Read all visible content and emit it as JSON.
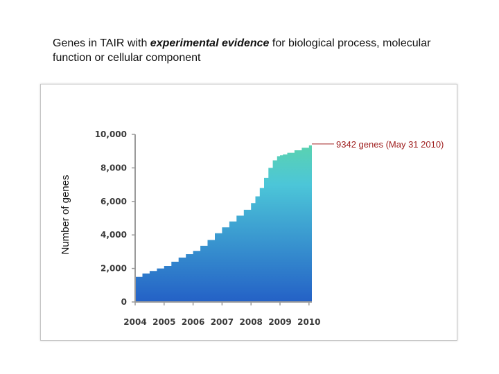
{
  "slide": {
    "title_pre": "Genes in TAIR with ",
    "title_emph": "experimental evidence",
    "title_post": " for biological process, molecular function or cellular component"
  },
  "annotation": {
    "text": "9342 genes  (May 31 2010)"
  },
  "chart_data": {
    "type": "area",
    "title": "",
    "xlabel": "",
    "ylabel": "Number of genes",
    "x_ticks": [
      "2004",
      "2005",
      "2006",
      "2007",
      "2008",
      "2009",
      "2010"
    ],
    "y_ticks": [
      "0",
      "2,000",
      "4,000",
      "6,000",
      "8,000",
      "10,000"
    ],
    "xlim": [
      2004.0,
      2010.1
    ],
    "ylim": [
      0,
      10000
    ],
    "grid": false,
    "legend": "none",
    "series": [
      {
        "x": [
          2004.0,
          2004.0,
          2004.25,
          2004.5,
          2004.75,
          2005.0,
          2005.25,
          2005.5,
          2005.75,
          2006.0,
          2006.25,
          2006.5,
          2006.75,
          2007.0,
          2007.25,
          2007.5,
          2007.75,
          2008.0,
          2008.15,
          2008.3,
          2008.45,
          2008.6,
          2008.75,
          2008.9,
          2009.0,
          2009.1,
          2009.25,
          2009.5,
          2009.75,
          2010.0,
          2010.1
        ],
        "y": [
          1400,
          1500,
          1700,
          1850,
          2000,
          2150,
          2400,
          2650,
          2850,
          3050,
          3350,
          3700,
          4100,
          4450,
          4800,
          5150,
          5500,
          5900,
          6300,
          6800,
          7400,
          8000,
          8450,
          8700,
          8750,
          8800,
          8900,
          9050,
          9200,
          9342,
          9342
        ]
      }
    ],
    "annotation": {
      "x": 2010.1,
      "y": 9342,
      "text": "9342 genes  (May 31 2010)"
    },
    "colors": {
      "top": "#5ad2b0",
      "upper": "#4cc6d8",
      "bottom": "#2461c6",
      "axis": "#9a9a9a",
      "annotation": "#a02020"
    }
  }
}
